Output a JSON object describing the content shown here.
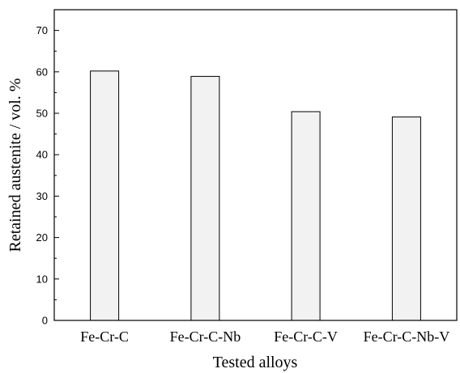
{
  "chart_data": {
    "type": "bar",
    "categories": [
      "Fe-Cr-C",
      "Fe-Cr-C-Nb",
      "Fe-Cr-C-V",
      "Fe-Cr-C-Nb-V"
    ],
    "values": [
      60.2,
      58.9,
      50.4,
      49.1
    ],
    "title": "",
    "xlabel": "Tested alloys",
    "ylabel": "Retained austenite / vol. %",
    "ylim": [
      0,
      75
    ],
    "yticks": [
      0,
      10,
      20,
      30,
      40,
      50,
      60,
      70
    ],
    "grid": false,
    "legend": "none",
    "colors": {
      "bar_fill": "#f2f2f2",
      "bar_stroke": "#000000"
    }
  }
}
